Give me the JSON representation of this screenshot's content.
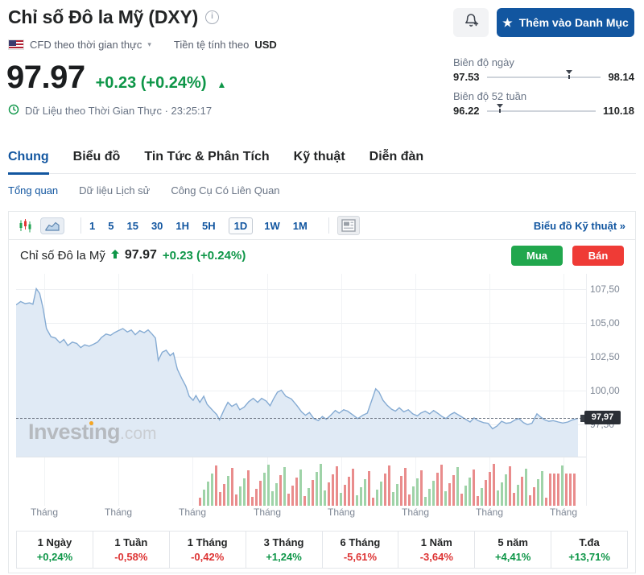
{
  "colors": {
    "accent_blue": "#1256a0",
    "positive_green": "#0e9648",
    "negative_red": "#dd3434",
    "buy_green": "#21a74d",
    "sell_red": "#ef3b36",
    "area_fill": "#e0eaf5",
    "line_blue": "#85abd3"
  },
  "header": {
    "title": "Chỉ số Đô la Mỹ (DXY)",
    "instrument_type": "CFD theo thời gian thực",
    "currency_label": "Tiền tệ tính theo",
    "currency": "USD",
    "price": "97.97",
    "change": "+0.23 (+0.24%)",
    "up_arrow": "▲",
    "realtime_label": "Dữ Liệu theo Thời Gian Thực · 23:25:17",
    "watchlist_button": "Thêm vào Danh Mục",
    "star_icon": "★",
    "caret_icon": "▾"
  },
  "ranges": {
    "day": {
      "label": "Biên độ ngày",
      "low": "97.53",
      "high": "98.14",
      "marker_pos_pct": 72
    },
    "week52": {
      "label": "Biên độ 52 tuần",
      "low": "96.22",
      "high": "110.18",
      "marker_pos_pct": 12.5
    }
  },
  "tabs": {
    "items": [
      "Chung",
      "Biểu đồ",
      "Tin Tức & Phân Tích",
      "Kỹ thuật",
      "Diễn đàn"
    ],
    "active_index": 0
  },
  "subtabs": {
    "items": [
      "Tổng quan",
      "Dữ liệu Lịch sử",
      "Công Cụ Có Liên Quan"
    ],
    "active_index": 0
  },
  "toolbar": {
    "timeframes": [
      "1",
      "5",
      "15",
      "30",
      "1H",
      "5H",
      "1D",
      "1W",
      "1M"
    ],
    "active": "1D",
    "tech_chart_link": "Biểu đồ Kỹ thuật »"
  },
  "chart_header": {
    "name": "Chỉ số Đô la Mỹ",
    "price": "97.97",
    "change": "+0.23 (+0.24%)",
    "buy_label": "Mua",
    "sell_label": "Bán"
  },
  "watermark": {
    "main": "Investing",
    "com": ".com"
  },
  "chart_data": {
    "type": "area",
    "title": "Chỉ số Đô la Mỹ (DXY) — 1D",
    "xlabel": "",
    "ylabel": "",
    "x_tick_labels": [
      "Tháng",
      "Tháng",
      "Tháng",
      "Tháng",
      "Tháng",
      "Tháng",
      "Tháng",
      "Tháng"
    ],
    "y_tick_values": [
      107.5,
      105.0,
      102.5,
      100.0,
      97.5
    ],
    "y_tick_labels": [
      "107,50",
      "105,00",
      "102,50",
      "100,00",
      "97,50"
    ],
    "ylim": [
      95.1,
      108.65
    ],
    "last_price": 97.97,
    "last_price_label": "97,97",
    "day_range": [
      97.53,
      98.14
    ],
    "week52_range": [
      96.22,
      110.18
    ],
    "legend_position": "none",
    "grid": true,
    "series": [
      {
        "name": "DXY",
        "x_as_fraction": true,
        "points": [
          [
            0,
            106.35
          ],
          [
            0.008,
            106.6
          ],
          [
            0.016,
            106.45
          ],
          [
            0.024,
            106.5
          ],
          [
            0.03,
            106.4
          ],
          [
            0.036,
            107.55
          ],
          [
            0.042,
            107.2
          ],
          [
            0.048,
            106.1
          ],
          [
            0.054,
            104.6
          ],
          [
            0.062,
            104.0
          ],
          [
            0.07,
            103.9
          ],
          [
            0.078,
            103.55
          ],
          [
            0.085,
            103.8
          ],
          [
            0.092,
            103.35
          ],
          [
            0.1,
            103.6
          ],
          [
            0.108,
            103.5
          ],
          [
            0.115,
            103.2
          ],
          [
            0.122,
            103.4
          ],
          [
            0.13,
            103.3
          ],
          [
            0.138,
            103.45
          ],
          [
            0.145,
            103.6
          ],
          [
            0.152,
            103.95
          ],
          [
            0.16,
            104.2
          ],
          [
            0.168,
            104.1
          ],
          [
            0.175,
            104.3
          ],
          [
            0.182,
            104.45
          ],
          [
            0.19,
            104.6
          ],
          [
            0.198,
            104.35
          ],
          [
            0.205,
            104.5
          ],
          [
            0.212,
            104.15
          ],
          [
            0.22,
            104.45
          ],
          [
            0.228,
            104.3
          ],
          [
            0.235,
            104.5
          ],
          [
            0.242,
            104.2
          ],
          [
            0.248,
            103.9
          ],
          [
            0.253,
            102.25
          ],
          [
            0.26,
            102.85
          ],
          [
            0.267,
            103.0
          ],
          [
            0.274,
            102.6
          ],
          [
            0.28,
            102.8
          ],
          [
            0.287,
            101.6
          ],
          [
            0.295,
            100.9
          ],
          [
            0.302,
            100.35
          ],
          [
            0.308,
            99.6
          ],
          [
            0.315,
            99.3
          ],
          [
            0.32,
            99.65
          ],
          [
            0.327,
            99.15
          ],
          [
            0.334,
            99.6
          ],
          [
            0.34,
            99.0
          ],
          [
            0.35,
            98.55
          ],
          [
            0.357,
            98.25
          ],
          [
            0.362,
            97.85
          ],
          [
            0.37,
            98.6
          ],
          [
            0.377,
            99.15
          ],
          [
            0.384,
            98.85
          ],
          [
            0.392,
            99.05
          ],
          [
            0.398,
            98.6
          ],
          [
            0.406,
            98.8
          ],
          [
            0.414,
            99.2
          ],
          [
            0.422,
            99.45
          ],
          [
            0.43,
            99.15
          ],
          [
            0.437,
            99.45
          ],
          [
            0.445,
            99.25
          ],
          [
            0.452,
            98.9
          ],
          [
            0.458,
            99.4
          ],
          [
            0.465,
            99.9
          ],
          [
            0.472,
            100.05
          ],
          [
            0.48,
            99.6
          ],
          [
            0.49,
            99.4
          ],
          [
            0.5,
            98.9
          ],
          [
            0.508,
            98.45
          ],
          [
            0.515,
            98.2
          ],
          [
            0.522,
            98.4
          ],
          [
            0.53,
            97.95
          ],
          [
            0.538,
            97.8
          ],
          [
            0.545,
            98.1
          ],
          [
            0.552,
            97.9
          ],
          [
            0.56,
            98.2
          ],
          [
            0.568,
            98.55
          ],
          [
            0.575,
            98.35
          ],
          [
            0.583,
            98.6
          ],
          [
            0.59,
            98.5
          ],
          [
            0.6,
            98.2
          ],
          [
            0.608,
            97.95
          ],
          [
            0.617,
            98.2
          ],
          [
            0.625,
            98.35
          ],
          [
            0.633,
            99.3
          ],
          [
            0.64,
            100.15
          ],
          [
            0.646,
            99.9
          ],
          [
            0.653,
            99.3
          ],
          [
            0.66,
            98.95
          ],
          [
            0.668,
            98.65
          ],
          [
            0.675,
            98.5
          ],
          [
            0.682,
            98.75
          ],
          [
            0.69,
            98.45
          ],
          [
            0.698,
            98.6
          ],
          [
            0.706,
            98.3
          ],
          [
            0.714,
            98.15
          ],
          [
            0.72,
            98.35
          ],
          [
            0.728,
            98.5
          ],
          [
            0.736,
            98.3
          ],
          [
            0.743,
            98.55
          ],
          [
            0.75,
            98.35
          ],
          [
            0.758,
            98.1
          ],
          [
            0.765,
            97.95
          ],
          [
            0.773,
            98.25
          ],
          [
            0.78,
            98.4
          ],
          [
            0.79,
            98.15
          ],
          [
            0.8,
            97.9
          ],
          [
            0.808,
            97.7
          ],
          [
            0.815,
            98.0
          ],
          [
            0.822,
            97.8
          ],
          [
            0.832,
            97.65
          ],
          [
            0.84,
            97.6
          ],
          [
            0.848,
            97.2
          ],
          [
            0.856,
            97.4
          ],
          [
            0.864,
            97.75
          ],
          [
            0.872,
            97.6
          ],
          [
            0.88,
            97.65
          ],
          [
            0.888,
            97.85
          ],
          [
            0.895,
            97.95
          ],
          [
            0.903,
            97.65
          ],
          [
            0.91,
            97.5
          ],
          [
            0.918,
            97.6
          ],
          [
            0.927,
            98.3
          ],
          [
            0.934,
            98.05
          ],
          [
            0.941,
            97.85
          ],
          [
            0.948,
            97.75
          ],
          [
            0.956,
            97.8
          ],
          [
            0.965,
            97.7
          ],
          [
            0.973,
            97.62
          ],
          [
            0.982,
            97.7
          ],
          [
            0.99,
            97.85
          ],
          [
            1,
            97.97
          ]
        ]
      }
    ],
    "volume_pattern": "rgggrrrgrrggrrrrggggkgrrrgrgrgggrrrgrrrgggrrggrrggrrrggrgggrrgrrgrggrrgrrrgggrrgrgrrggrrrrgrrr"
  },
  "performance": {
    "cells": [
      {
        "label": "1 Ngày",
        "value": "+0,24%",
        "dir": "up"
      },
      {
        "label": "1 Tuần",
        "value": "-0,58%",
        "dir": "down"
      },
      {
        "label": "1 Tháng",
        "value": "-0,42%",
        "dir": "down"
      },
      {
        "label": "3 Tháng",
        "value": "+1,24%",
        "dir": "up"
      },
      {
        "label": "6 Tháng",
        "value": "-5,61%",
        "dir": "down"
      },
      {
        "label": "1 Năm",
        "value": "-3,64%",
        "dir": "down"
      },
      {
        "label": "5 năm",
        "value": "+4,41%",
        "dir": "up"
      },
      {
        "label": "T.đa",
        "value": "+13,71%",
        "dir": "up"
      }
    ]
  }
}
